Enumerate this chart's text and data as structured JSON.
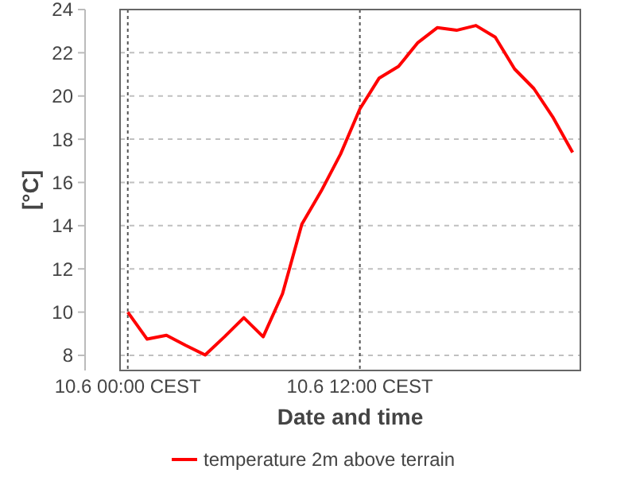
{
  "chart_data": {
    "type": "line",
    "xlabel": "Date and time",
    "ylabel": "[°C]",
    "categories": [
      "10.6 00:00 CEST",
      null,
      null,
      null,
      null,
      null,
      null,
      null,
      null,
      null,
      null,
      null,
      "10.6 12:00 CEST",
      null,
      null,
      null,
      null,
      null,
      null,
      null,
      null,
      null,
      null,
      null
    ],
    "series": [
      {
        "name": "temperature 2m above terrain",
        "color": "#ff0000",
        "values": [
          10.0,
          8.75,
          8.93,
          8.46,
          8.02,
          8.86,
          9.74,
          8.86,
          10.85,
          14.07,
          15.6,
          17.31,
          19.4,
          20.83,
          21.37,
          22.47,
          23.16,
          23.04,
          23.26,
          22.72,
          21.25,
          20.34,
          18.99,
          17.39
        ]
      }
    ],
    "ylim": [
      7.3,
      24
    ],
    "yticks": [
      8,
      10,
      12,
      14,
      16,
      18,
      20,
      22,
      24
    ],
    "grid": true,
    "legend": "bottom",
    "marker": "none",
    "line_style": "solid"
  }
}
